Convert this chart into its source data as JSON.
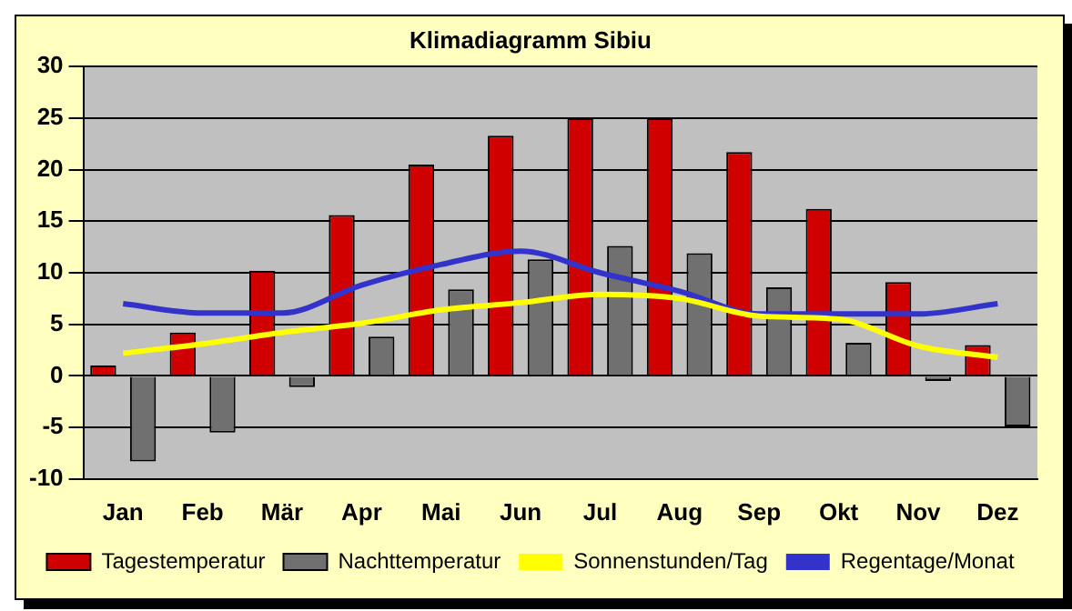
{
  "chart_data": {
    "type": "bar",
    "title": "Klimadiagramm Sibiu",
    "categories": [
      "Jan",
      "Feb",
      "Mär",
      "Apr",
      "Mai",
      "Jun",
      "Jul",
      "Aug",
      "Sep",
      "Okt",
      "Nov",
      "Dez"
    ],
    "series": [
      {
        "name": "Tagestemperatur",
        "color": "#d00000",
        "values": [
          1.0,
          4.2,
          10.2,
          15.6,
          20.5,
          23.3,
          25.0,
          25.0,
          21.7,
          16.2,
          9.1,
          3.0
        ]
      },
      {
        "name": "Nachttemperatur",
        "color": "#707070",
        "values": [
          -8.3,
          -5.5,
          -1.1,
          3.8,
          8.4,
          11.3,
          12.6,
          11.9,
          8.6,
          3.2,
          -0.5,
          -4.9
        ]
      },
      {
        "name": "Sonnenstunden/Tag",
        "type": "line",
        "color": "#ffff00",
        "values": [
          2.2,
          3.1,
          4.2,
          5.1,
          6.4,
          7.1,
          7.9,
          7.5,
          5.8,
          5.5,
          2.9,
          1.8
        ]
      },
      {
        "name": "Regentage/Monat",
        "type": "line",
        "color": "#3333cc",
        "values": [
          7.0,
          6.1,
          6.1,
          8.8,
          10.8,
          12.1,
          10.0,
          8.2,
          6.0,
          6.0,
          6.0,
          7.0
        ]
      }
    ],
    "ylim": [
      -10,
      30
    ],
    "yticks": [
      -10,
      -5,
      0,
      5,
      10,
      15,
      20,
      25,
      30
    ],
    "grid": "y",
    "legend": "bottom",
    "marker": "none"
  }
}
